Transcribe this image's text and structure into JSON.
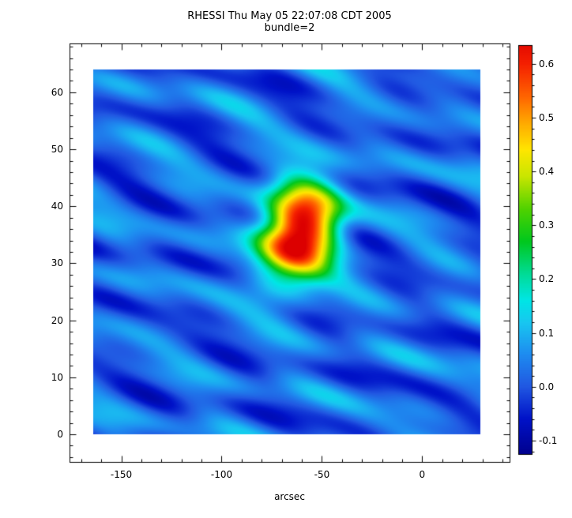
{
  "chart_data": {
    "type": "heatmap",
    "title": "RHESSI Thu May 05 22:07:08 CDT 2005",
    "subtitle": "bundle=2",
    "xlabel": "arcsec",
    "ylabel": "",
    "x_axis": {
      "ticks": [
        -150,
        -100,
        -50,
        0
      ],
      "tick_labels": [
        "-150",
        "-100",
        "-50",
        "0"
      ],
      "minor_step": 10
    },
    "y_axis": {
      "ticks": [
        0,
        10,
        20,
        30,
        40,
        50,
        60
      ],
      "tick_labels": [
        "0",
        "10",
        "20",
        "30",
        "40",
        "50",
        "60"
      ],
      "minor_step": 2
    },
    "image_x_range": [
      -164,
      29
    ],
    "image_y_range": [
      0,
      64
    ],
    "colorbar": {
      "range": [
        -0.125,
        0.635
      ],
      "ticks": [
        0.6,
        0.5,
        0.4,
        0.3,
        0.2,
        0.1,
        0.0,
        -0.1
      ],
      "tick_labels": [
        "0.6",
        "0.5",
        "0.4",
        "0.3",
        "0.2",
        "0.1",
        "0.0",
        "-0.1"
      ],
      "minor_step": 0.02
    },
    "colormap_stops": [
      [
        -0.13,
        "#00008a"
      ],
      [
        -0.06,
        "#0012c8"
      ],
      [
        0.0,
        "#2158e2"
      ],
      [
        0.06,
        "#1e8cf0"
      ],
      [
        0.12,
        "#18c8f0"
      ],
      [
        0.16,
        "#00e6e6"
      ],
      [
        0.21,
        "#00dc96"
      ],
      [
        0.27,
        "#00c81e"
      ],
      [
        0.33,
        "#50d200"
      ],
      [
        0.39,
        "#c8e600"
      ],
      [
        0.44,
        "#ffe600"
      ],
      [
        0.49,
        "#ffaa00"
      ],
      [
        0.54,
        "#ff6400"
      ],
      [
        0.6,
        "#f52000"
      ],
      [
        0.655,
        "#dc0000"
      ]
    ],
    "field_model": {
      "base": 0.02,
      "ripples": [
        [
          0.04,
          0.055,
          0.55,
          1.0
        ],
        [
          0.035,
          0.09,
          0.35,
          2.5
        ],
        [
          0.03,
          0.03,
          0.75,
          4.2
        ],
        [
          0.025,
          0.12,
          0.2,
          0.7
        ],
        [
          0.02,
          0.17,
          0.9,
          3.3
        ]
      ],
      "gaussians": [
        [
          -60,
          36,
          0.58,
          11,
          6
        ],
        [
          -73,
          32,
          0.2,
          10,
          5
        ],
        [
          -48,
          38,
          0.12,
          9,
          5
        ]
      ],
      "peak": {
        "x": -60,
        "y": 36,
        "max_value": 0.62
      },
      "background_range": [
        -0.1,
        0.15
      ]
    }
  }
}
